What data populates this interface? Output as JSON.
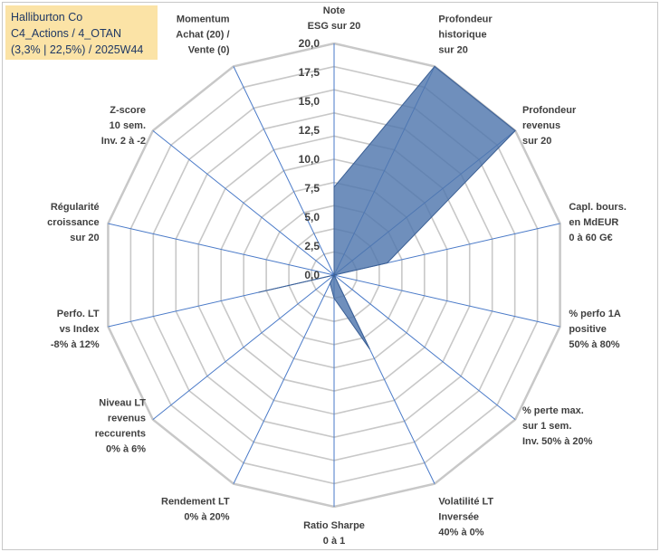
{
  "title": {
    "line1": "Halliburton Co",
    "line2": "C4_Actions / 4_OTAN",
    "line3": "(3,3% | 22,5%) / 2025W44"
  },
  "chart_data": {
    "type": "radar",
    "rmin": 0,
    "rmax": 20,
    "ticks": [
      "0,0",
      "2,5",
      "5,0",
      "7,5",
      "10,0",
      "12,5",
      "15,0",
      "17,5",
      "20,0"
    ],
    "categories": [
      [
        "Note",
        "ESG sur 20"
      ],
      [
        "Profondeur",
        "historique",
        "sur 20"
      ],
      [
        "Profondeur",
        "revenus",
        "sur 20"
      ],
      [
        "Capl. bours.",
        "en MdEUR",
        "0 à 60 G€"
      ],
      [
        "% perfo 1A",
        "positive",
        "50% à 80%"
      ],
      [
        "% perte max.",
        "sur 1 sem.",
        "Inv. 50% à 20%"
      ],
      [
        "Volatilité LT",
        "Inversée",
        "40% à 0%"
      ],
      [
        "Ratio Sharpe",
        "0 à 1"
      ],
      [
        "Rendement LT",
        "0% à 20%"
      ],
      [
        "Niveau LT",
        "revenus",
        "reccurents",
        "0% à 6%"
      ],
      [
        "Perfo. LT",
        "vs Index",
        "-8% à 12%"
      ],
      [
        "Régularité",
        "croissance",
        "sur 20"
      ],
      [
        "Z-score",
        "10 sem.",
        "Inv. 2 à -2"
      ],
      [
        "Momentum",
        "Achat (20) /",
        "Vente (0)"
      ]
    ],
    "values": [
      7.6,
      20.0,
      20.0,
      4.7,
      0.0,
      0.0,
      7.1,
      2.0,
      0.8,
      0.0,
      6.7,
      0.0,
      0.0,
      0.0
    ],
    "colors": {
      "fill": "#4f76ad",
      "stroke": "#3b5f94",
      "grid": "#c8c8c8",
      "axis": "#4a7ac8"
    }
  }
}
